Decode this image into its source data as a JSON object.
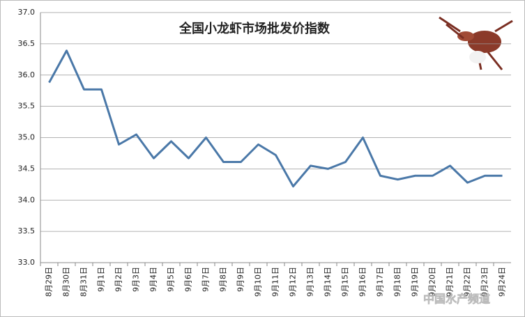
{
  "chart_data": {
    "type": "line",
    "title": "全国小龙虾市场批发价指数",
    "categories": [
      "8月29日",
      "8月30日",
      "8月31日",
      "9月1日",
      "9月2日",
      "9月3日",
      "9月4日",
      "9月5日",
      "9月6日",
      "9月7日",
      "9月8日",
      "9月9日",
      "9月10日",
      "9月11日",
      "9月12日",
      "9月13日",
      "9月14日",
      "9月15日",
      "9月16日",
      "9月17日",
      "9月18日",
      "9月19日",
      "9月20日",
      "9月21日",
      "9月22日",
      "9月23日",
      "9月24日"
    ],
    "values": [
      35.88,
      36.39,
      35.77,
      35.77,
      34.89,
      35.05,
      34.67,
      34.94,
      34.67,
      35.0,
      34.61,
      34.61,
      34.89,
      34.72,
      34.22,
      34.55,
      34.5,
      34.61,
      35.0,
      34.39,
      34.33,
      34.39,
      34.39,
      34.55,
      34.28,
      34.39,
      34.39
    ],
    "color": "#4a78a8",
    "ylim": [
      33,
      37
    ],
    "yticks": [
      {
        "value": 33,
        "label": "33.0"
      },
      33.5,
      {
        "value": 34,
        "label": "34.0"
      },
      34.5,
      {
        "value": 35,
        "label": "35.0"
      },
      35.5,
      {
        "value": 36,
        "label": "36.0"
      },
      36.5,
      {
        "value": 37,
        "label": "37.0"
      }
    ],
    "grid": true,
    "watermark": "中国水产频道"
  }
}
